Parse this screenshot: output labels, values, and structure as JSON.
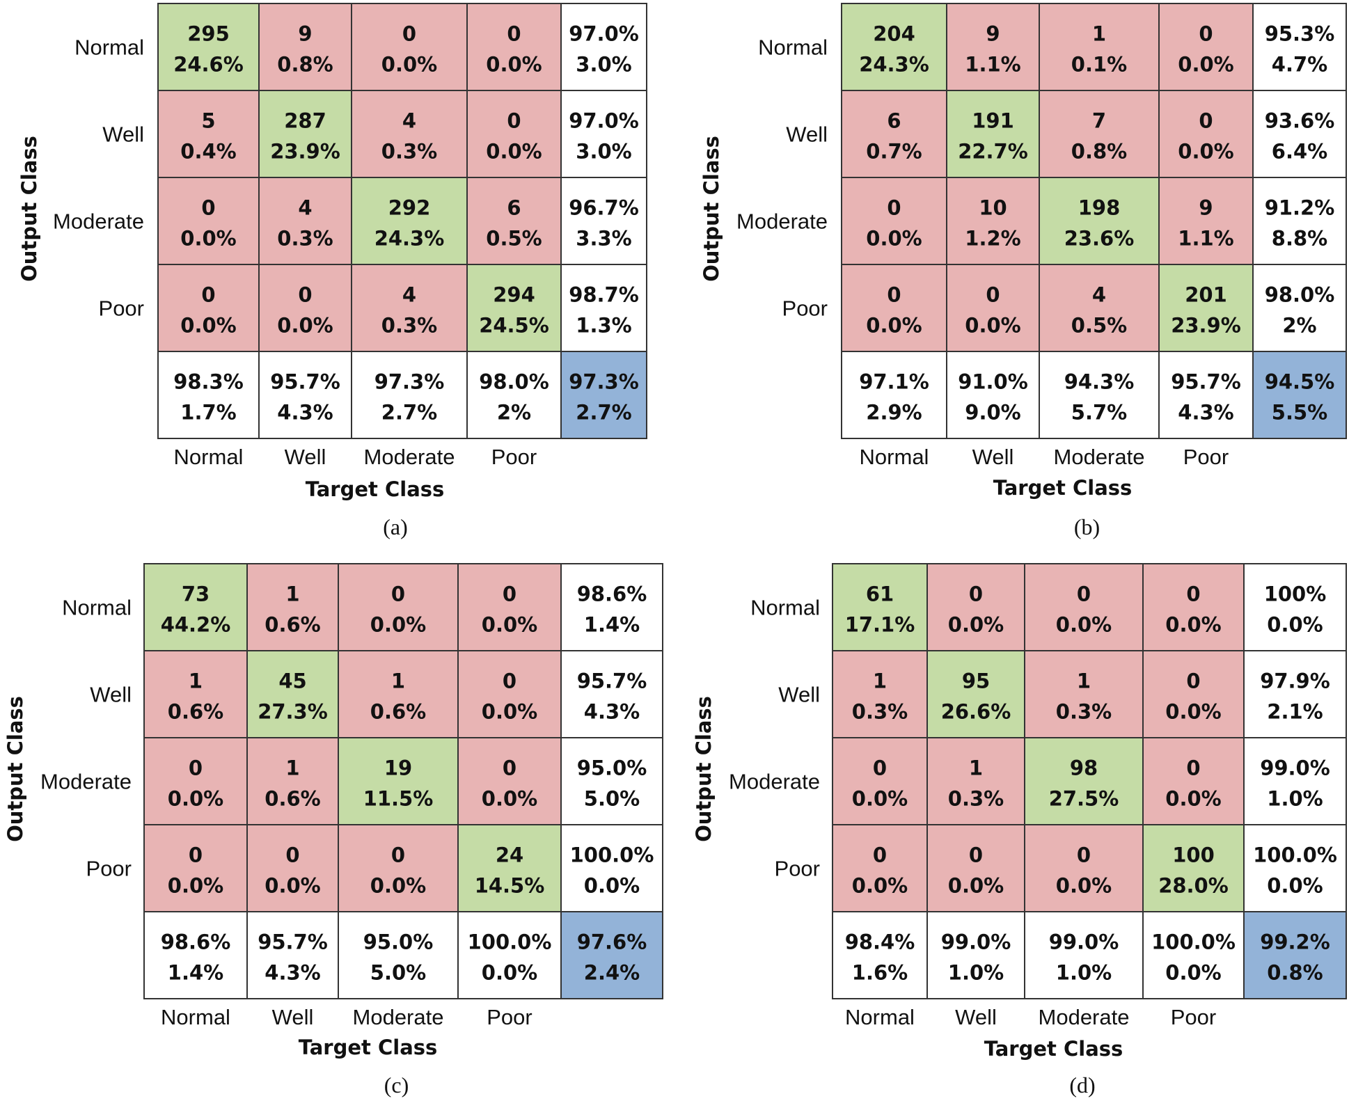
{
  "chart_data": [
    {
      "type": "heatmap",
      "panel_label": "(a)",
      "x_axis_title": "Target Class",
      "y_axis_title": "Output Class",
      "classes": [
        "Normal",
        "Well",
        "Moderate",
        "Poor"
      ],
      "cells": [
        [
          [
            "295",
            "24.6%"
          ],
          [
            "9",
            "0.8%"
          ],
          [
            "0",
            "0.0%"
          ],
          [
            "0",
            "0.0%"
          ],
          [
            "97.0%",
            "3.0%"
          ]
        ],
        [
          [
            "5",
            "0.4%"
          ],
          [
            "287",
            "23.9%"
          ],
          [
            "4",
            "0.3%"
          ],
          [
            "0",
            "0.0%"
          ],
          [
            "97.0%",
            "3.0%"
          ]
        ],
        [
          [
            "0",
            "0.0%"
          ],
          [
            "4",
            "0.3%"
          ],
          [
            "292",
            "24.3%"
          ],
          [
            "6",
            "0.5%"
          ],
          [
            "96.7%",
            "3.3%"
          ]
        ],
        [
          [
            "0",
            "0.0%"
          ],
          [
            "0",
            "0.0%"
          ],
          [
            "4",
            "0.3%"
          ],
          [
            "294",
            "24.5%"
          ],
          [
            "98.7%",
            "1.3%"
          ]
        ],
        [
          [
            "98.3%",
            "1.7%"
          ],
          [
            "95.7%",
            "4.3%"
          ],
          [
            "97.3%",
            "2.7%"
          ],
          [
            "98.0%",
            "2%"
          ],
          [
            "97.3%",
            "2.7%"
          ]
        ]
      ]
    },
    {
      "type": "heatmap",
      "panel_label": "(b)",
      "x_axis_title": "Target Class",
      "y_axis_title": "Output Class",
      "classes": [
        "Normal",
        "Well",
        "Moderate",
        "Poor"
      ],
      "cells": [
        [
          [
            "204",
            "24.3%"
          ],
          [
            "9",
            "1.1%"
          ],
          [
            "1",
            "0.1%"
          ],
          [
            "0",
            "0.0%"
          ],
          [
            "95.3%",
            "4.7%"
          ]
        ],
        [
          [
            "6",
            "0.7%"
          ],
          [
            "191",
            "22.7%"
          ],
          [
            "7",
            "0.8%"
          ],
          [
            "0",
            "0.0%"
          ],
          [
            "93.6%",
            "6.4%"
          ]
        ],
        [
          [
            "0",
            "0.0%"
          ],
          [
            "10",
            "1.2%"
          ],
          [
            "198",
            "23.6%"
          ],
          [
            "9",
            "1.1%"
          ],
          [
            "91.2%",
            "8.8%"
          ]
        ],
        [
          [
            "0",
            "0.0%"
          ],
          [
            "0",
            "0.0%"
          ],
          [
            "4",
            "0.5%"
          ],
          [
            "201",
            "23.9%"
          ],
          [
            "98.0%",
            "2%"
          ]
        ],
        [
          [
            "97.1%",
            "2.9%"
          ],
          [
            "91.0%",
            "9.0%"
          ],
          [
            "94.3%",
            "5.7%"
          ],
          [
            "95.7%",
            "4.3%"
          ],
          [
            "94.5%",
            "5.5%"
          ]
        ]
      ]
    },
    {
      "type": "heatmap",
      "panel_label": "(c)",
      "x_axis_title": "Target Class",
      "y_axis_title": "Output Class",
      "classes": [
        "Normal",
        "Well",
        "Moderate",
        "Poor"
      ],
      "cells": [
        [
          [
            "73",
            "44.2%"
          ],
          [
            "1",
            "0.6%"
          ],
          [
            "0",
            "0.0%"
          ],
          [
            "0",
            "0.0%"
          ],
          [
            "98.6%",
            "1.4%"
          ]
        ],
        [
          [
            "1",
            "0.6%"
          ],
          [
            "45",
            "27.3%"
          ],
          [
            "1",
            "0.6%"
          ],
          [
            "0",
            "0.0%"
          ],
          [
            "95.7%",
            "4.3%"
          ]
        ],
        [
          [
            "0",
            "0.0%"
          ],
          [
            "1",
            "0.6%"
          ],
          [
            "19",
            "11.5%"
          ],
          [
            "0",
            "0.0%"
          ],
          [
            "95.0%",
            "5.0%"
          ]
        ],
        [
          [
            "0",
            "0.0%"
          ],
          [
            "0",
            "0.0%"
          ],
          [
            "0",
            "0.0%"
          ],
          [
            "24",
            "14.5%"
          ],
          [
            "100.0%",
            "0.0%"
          ]
        ],
        [
          [
            "98.6%",
            "1.4%"
          ],
          [
            "95.7%",
            "4.3%"
          ],
          [
            "95.0%",
            "5.0%"
          ],
          [
            "100.0%",
            "0.0%"
          ],
          [
            "97.6%",
            "2.4%"
          ]
        ]
      ]
    },
    {
      "type": "heatmap",
      "panel_label": "(d)",
      "x_axis_title": "Target Class",
      "y_axis_title": "Output Class",
      "classes": [
        "Normal",
        "Well",
        "Moderate",
        "Poor"
      ],
      "cells": [
        [
          [
            "61",
            "17.1%"
          ],
          [
            "0",
            "0.0%"
          ],
          [
            "0",
            "0.0%"
          ],
          [
            "0",
            "0.0%"
          ],
          [
            "100%",
            "0.0%"
          ]
        ],
        [
          [
            "1",
            "0.3%"
          ],
          [
            "95",
            "26.6%"
          ],
          [
            "1",
            "0.3%"
          ],
          [
            "0",
            "0.0%"
          ],
          [
            "97.9%",
            "2.1%"
          ]
        ],
        [
          [
            "0",
            "0.0%"
          ],
          [
            "1",
            "0.3%"
          ],
          [
            "98",
            "27.5%"
          ],
          [
            "0",
            "0.0%"
          ],
          [
            "99.0%",
            "1.0%"
          ]
        ],
        [
          [
            "0",
            "0.0%"
          ],
          [
            "0",
            "0.0%"
          ],
          [
            "0",
            "0.0%"
          ],
          [
            "100",
            "28.0%"
          ],
          [
            "100.0%",
            "0.0%"
          ]
        ],
        [
          [
            "98.4%",
            "1.6%"
          ],
          [
            "99.0%",
            "1.0%"
          ],
          [
            "99.0%",
            "1.0%"
          ],
          [
            "100.0%",
            "0.0%"
          ],
          [
            "99.2%",
            "0.8%"
          ]
        ]
      ]
    }
  ],
  "colors": {
    "correct": "#c5dca6",
    "incorrect": "#e8b4b4",
    "summary": "#ffffff",
    "overall": "#93b3d8",
    "grid": "#333333"
  }
}
